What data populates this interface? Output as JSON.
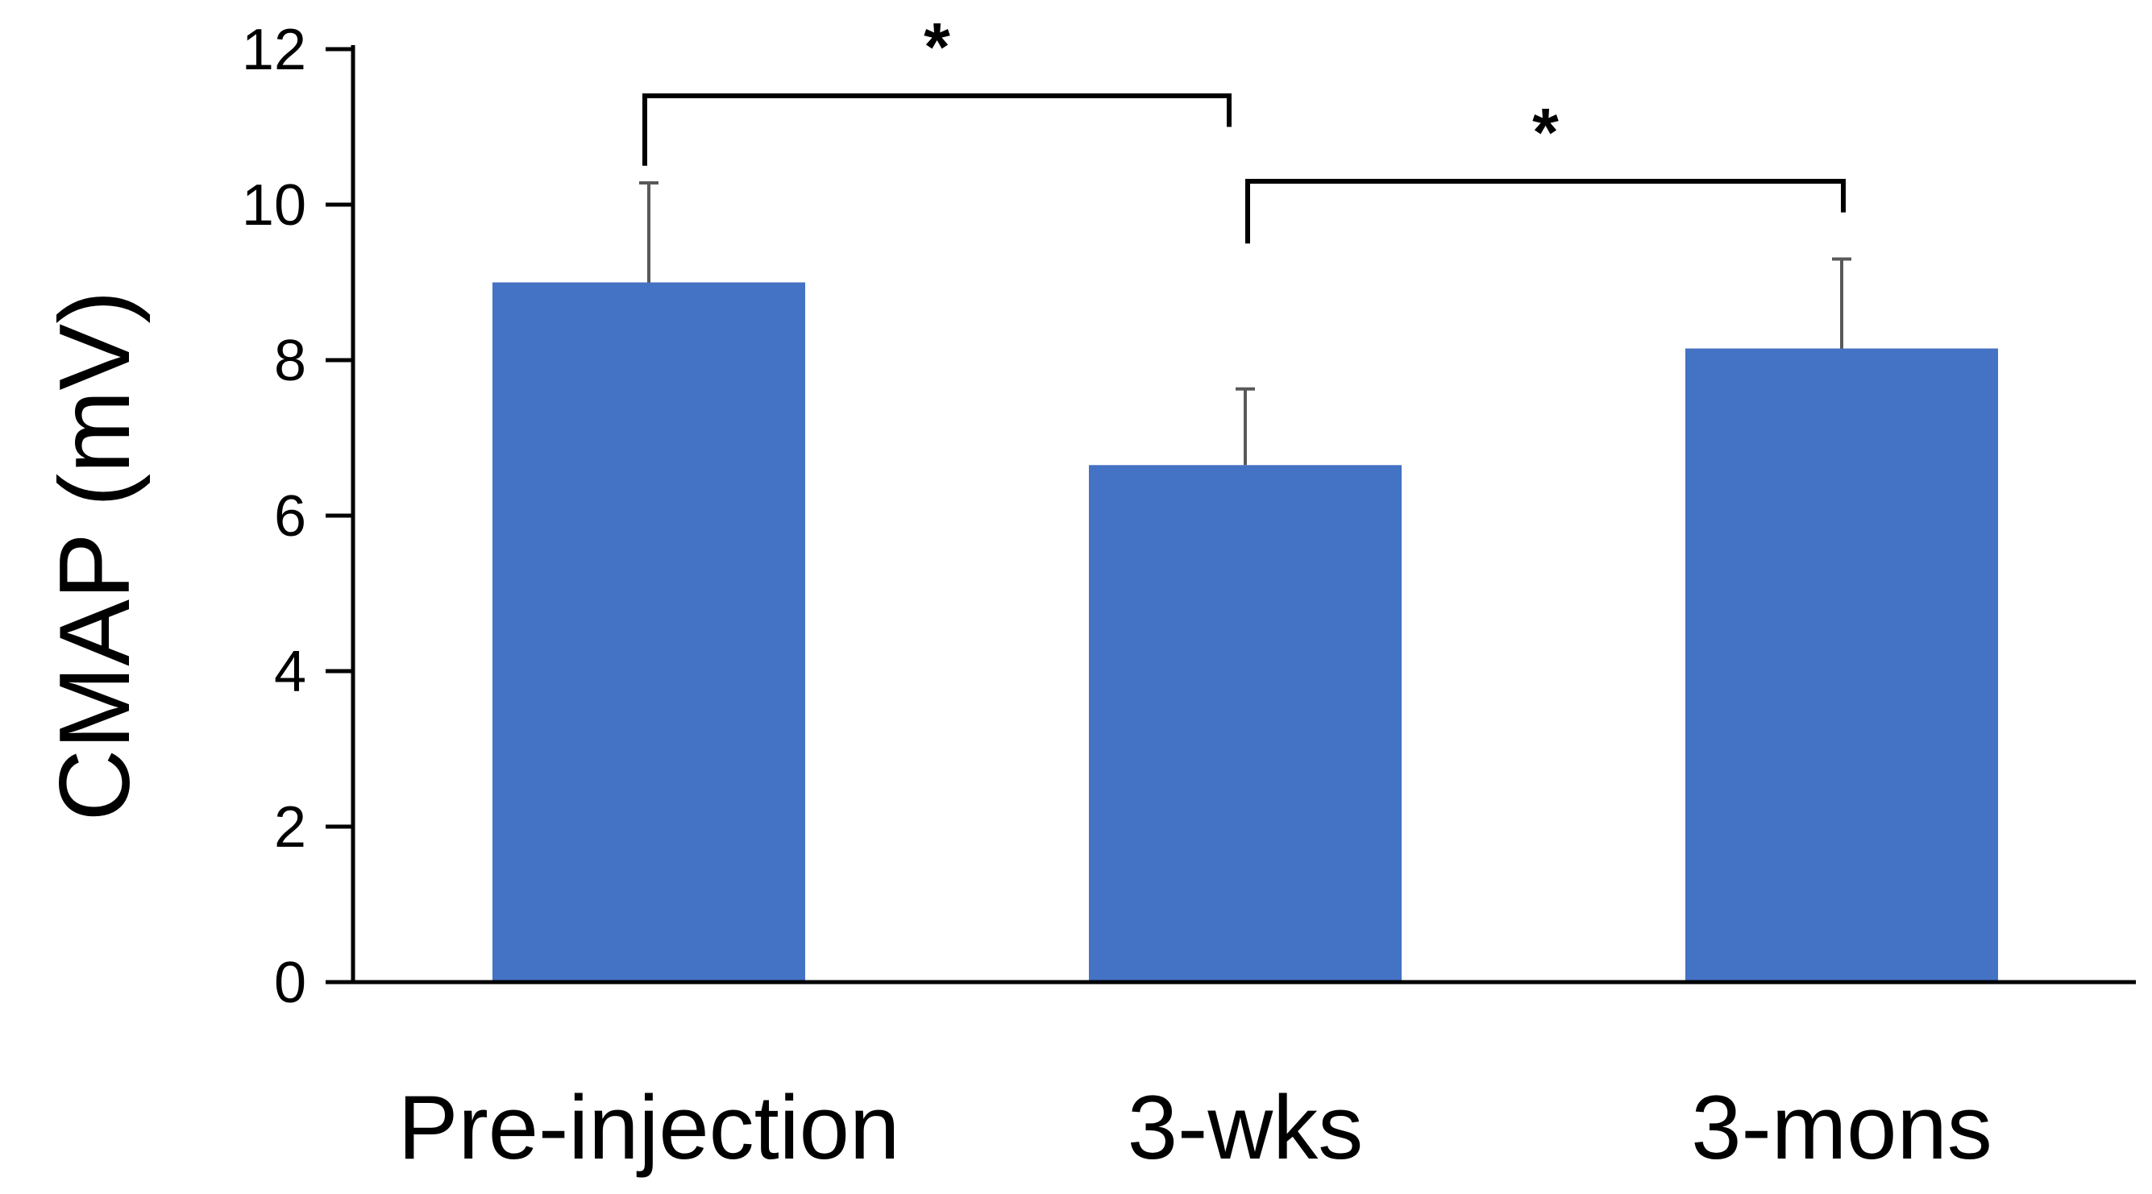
{
  "chart_data": {
    "type": "bar",
    "title": "",
    "xlabel": "",
    "ylabel": "CMAP (mV)",
    "categories": [
      "Pre-injection",
      "3-wks",
      "3-mons"
    ],
    "values": [
      9.0,
      6.65,
      8.15
    ],
    "error_bars": [
      1.28,
      0.98,
      1.15
    ],
    "ylim": [
      0,
      12
    ],
    "yticks": [
      0,
      2,
      4,
      6,
      8,
      10,
      12
    ],
    "ytick_labels": [
      "0",
      "2",
      "4",
      "6",
      "8",
      "10",
      "12"
    ],
    "grid": false,
    "legend": "none",
    "bar_color": "#4472C4",
    "significance": [
      {
        "from": 0,
        "to": 1,
        "label": "*",
        "y": 11.4,
        "left_end": 10.5,
        "right_end": 11.0
      },
      {
        "from": 1,
        "to": 2,
        "label": "*",
        "y": 10.3,
        "left_end": 9.5,
        "right_end": 9.9
      }
    ]
  }
}
